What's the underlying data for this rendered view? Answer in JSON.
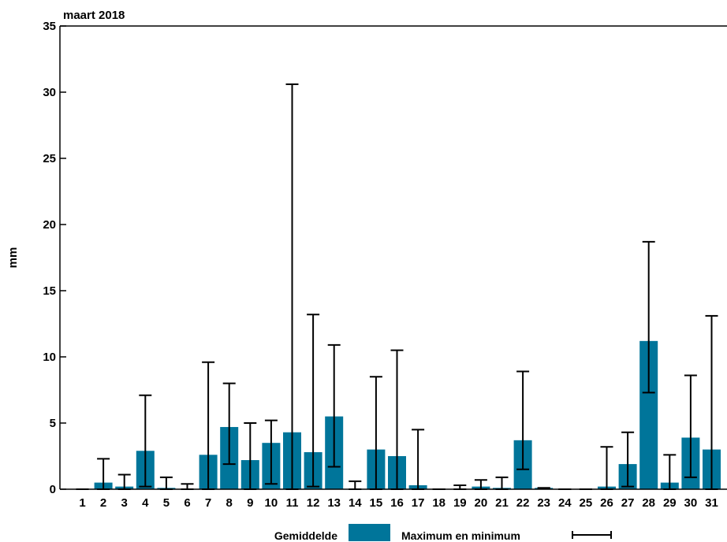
{
  "chart_data": {
    "type": "bar",
    "title": "maart 2018",
    "ylabel": "mm",
    "xlabel": "",
    "ylim": [
      0,
      35
    ],
    "yticks": [
      0,
      5,
      10,
      15,
      20,
      25,
      30,
      35
    ],
    "grid": false,
    "legend_position": "bottom",
    "bar_color": "#00759a",
    "categories": [
      "1",
      "2",
      "3",
      "4",
      "5",
      "6",
      "7",
      "8",
      "9",
      "10",
      "11",
      "12",
      "13",
      "14",
      "15",
      "16",
      "17",
      "18",
      "19",
      "20",
      "21",
      "22",
      "23",
      "24",
      "25",
      "26",
      "27",
      "28",
      "29",
      "30",
      "31"
    ],
    "series": [
      {
        "name": "Gemiddelde",
        "values": [
          0.0,
          0.5,
          0.2,
          2.9,
          0.1,
          0.0,
          2.6,
          4.7,
          2.2,
          3.5,
          4.3,
          2.8,
          5.5,
          0.0,
          3.0,
          2.5,
          0.3,
          0.0,
          0.0,
          0.2,
          0.1,
          3.7,
          0.1,
          0.0,
          0.0,
          0.2,
          1.9,
          11.2,
          0.5,
          3.9,
          3.0
        ]
      },
      {
        "name": "Maximum en minimum",
        "max": [
          0.0,
          2.3,
          1.1,
          7.1,
          0.9,
          0.4,
          9.6,
          8.0,
          5.0,
          5.2,
          30.6,
          13.2,
          10.9,
          0.6,
          8.5,
          10.5,
          4.5,
          0.0,
          0.3,
          0.7,
          0.9,
          8.9,
          0.1,
          0.0,
          0.0,
          3.2,
          4.3,
          18.7,
          2.6,
          8.6,
          13.1
        ],
        "min": [
          0.0,
          0.0,
          0.0,
          0.2,
          0.0,
          0.0,
          0.0,
          1.9,
          0.0,
          0.4,
          0.0,
          0.2,
          1.7,
          0.0,
          0.0,
          0.0,
          0.0,
          0.0,
          0.0,
          0.0,
          0.0,
          1.5,
          0.1,
          0.0,
          0.0,
          0.0,
          0.2,
          7.3,
          0.0,
          0.9,
          0.0
        ]
      }
    ]
  }
}
